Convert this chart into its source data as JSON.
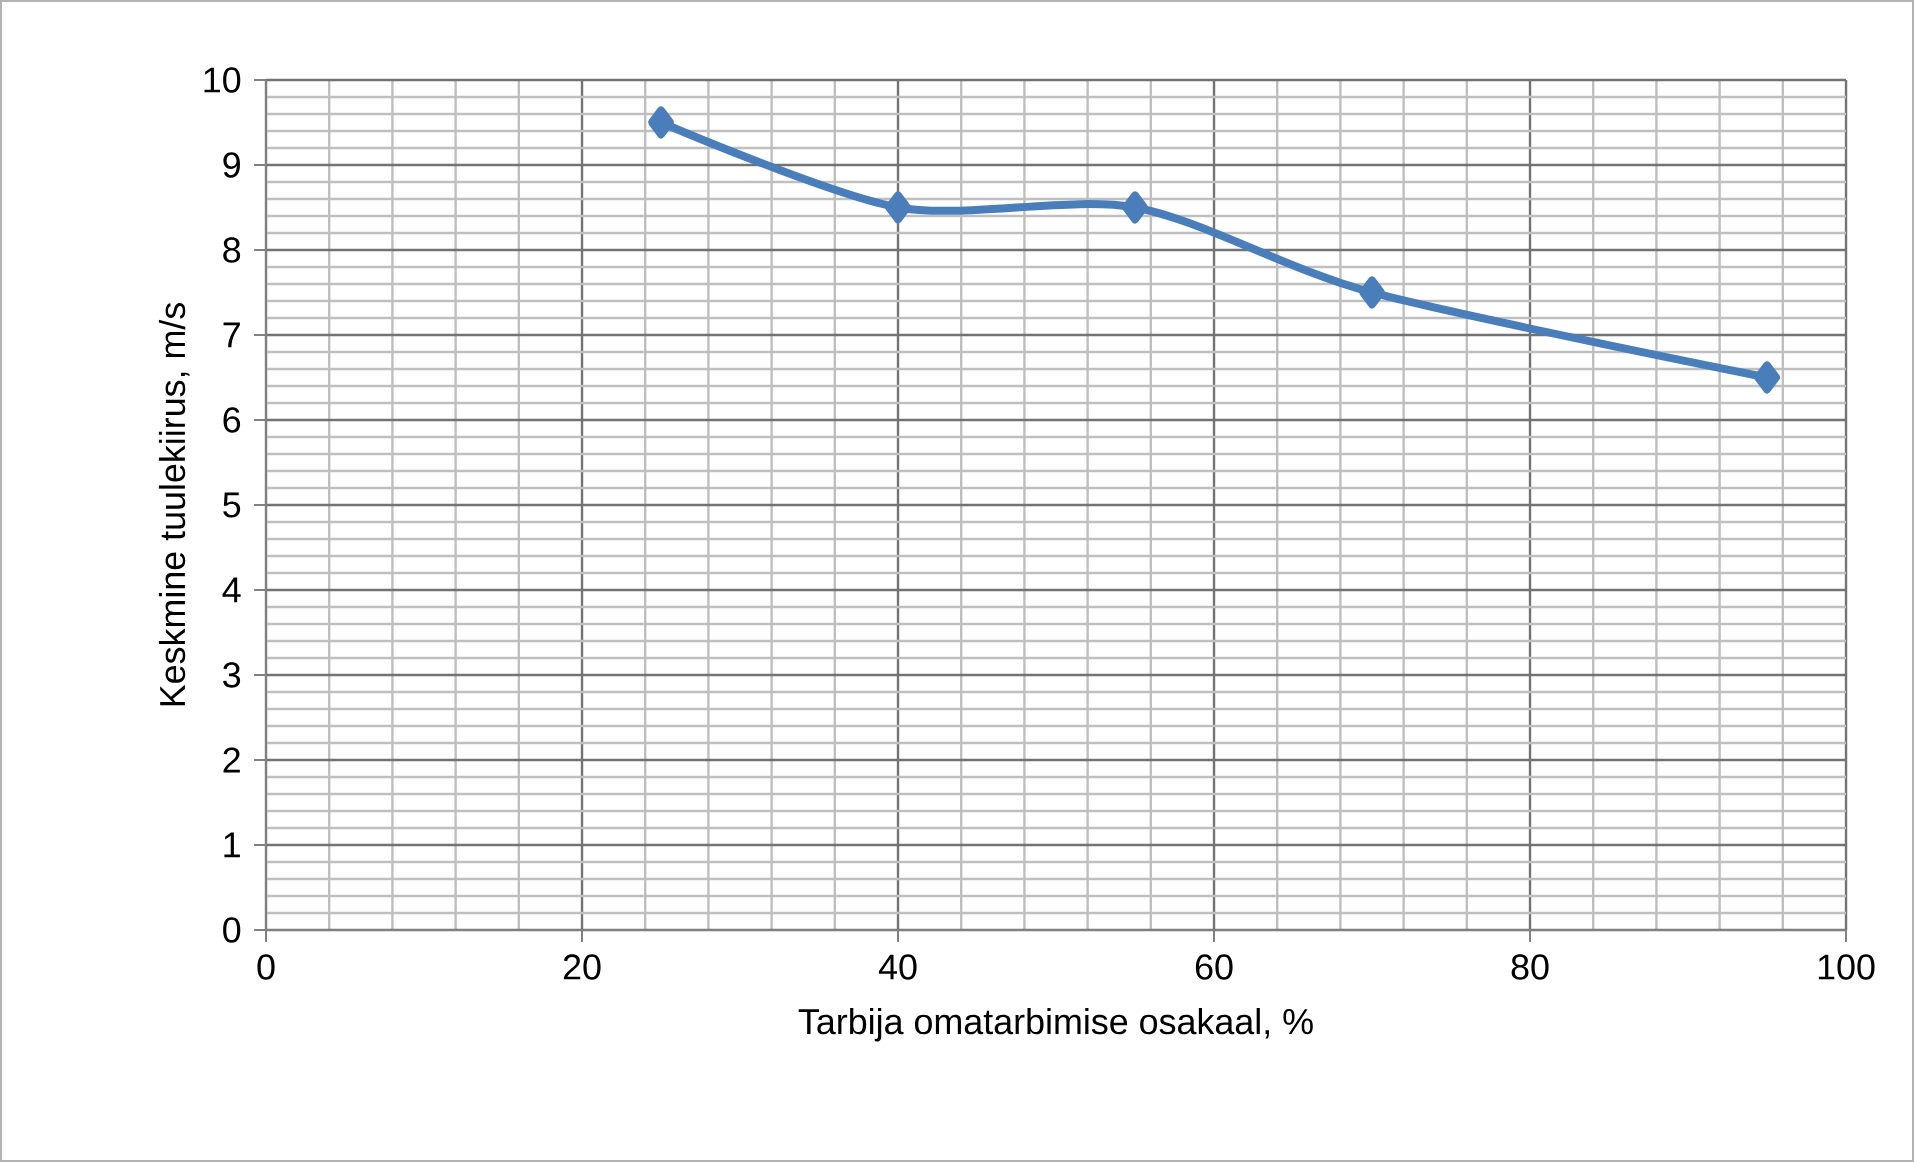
{
  "chart_data": {
    "type": "line",
    "xlabel": "Tarbija omatarbimise osakaal, %",
    "ylabel": "Keskmine tuulekiirus, m/s",
    "x": [
      25,
      40,
      55,
      70,
      95
    ],
    "series": [
      {
        "color": "#4a7ebb",
        "values": [
          9.5,
          8.5,
          8.5,
          7.5,
          6.5
        ]
      }
    ],
    "xlim": [
      0,
      100
    ],
    "xticks": [
      0,
      20,
      40,
      60,
      80,
      100
    ],
    "ylim": [
      0,
      10
    ],
    "yticks": [
      0,
      1,
      2,
      3,
      4,
      5,
      6,
      7,
      8,
      9,
      10
    ],
    "grid": true,
    "marker": "diamond",
    "line_style": "solid"
  }
}
